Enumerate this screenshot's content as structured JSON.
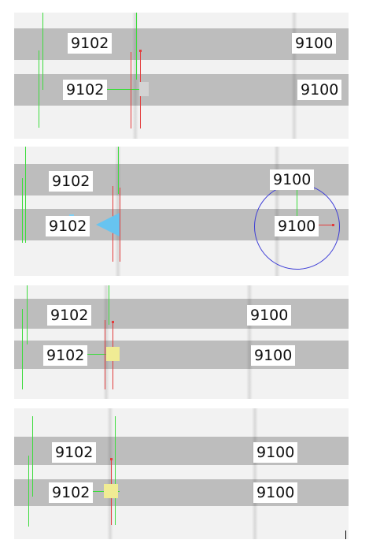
{
  "colors": {
    "road": "#bdbdbd",
    "background": "#f2f2f2",
    "guide_green": "#3ddc3d",
    "guide_red": "#e23c3c",
    "marker_blue": "#67c4f0",
    "selection_circle": "#3b3bd6",
    "marker_yellow": "#f0ec94",
    "marker_gray": "#d3d3d3"
  },
  "panels": [
    {
      "top_left": "9102",
      "top_right": "9100",
      "bottom_left": "9102",
      "bottom_right": "9100",
      "marker": "gray-square"
    },
    {
      "top_left": "9102",
      "top_right": "9100",
      "bottom_left": "9102",
      "bottom_right": "9100",
      "marker": "blue-arrow",
      "selection": "circle"
    },
    {
      "top_left": "9102",
      "top_right": "9100",
      "bottom_left": "9102",
      "bottom_right": "9100",
      "marker": "yellow-square"
    },
    {
      "top_left": "9102",
      "top_right": "9100",
      "bottom_left": "9102",
      "bottom_right": "9100",
      "marker": "yellow-square"
    }
  ]
}
